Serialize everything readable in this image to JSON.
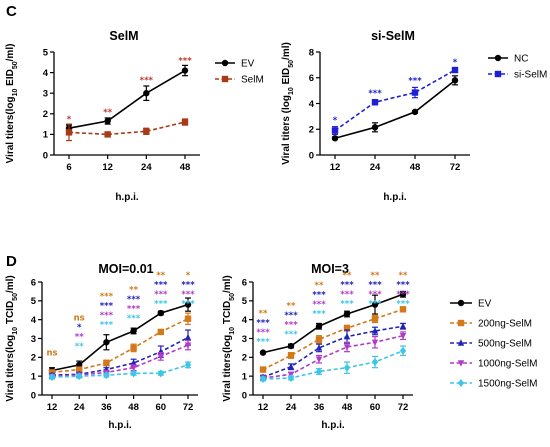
{
  "figure": {
    "panel_c_label": "C",
    "panel_d_label": "D"
  },
  "chart_data": [
    {
      "type": "line",
      "title": "SelM",
      "xlabel": "h.p.i.",
      "ylabel": "Viral titers(log10 EID50/ml)",
      "categories": [
        "6",
        "12",
        "24",
        "48"
      ],
      "ylim": [
        0,
        5
      ],
      "yticks": [
        "0",
        "1",
        "2",
        "3",
        "4",
        "5"
      ],
      "legend_position": "top-right",
      "series": [
        {
          "name": "EV",
          "color": "#000000",
          "dash": "solid",
          "marker": "circle",
          "values": [
            1.3,
            1.65,
            3.0,
            4.1
          ],
          "errors": [
            0.15,
            0.15,
            0.35,
            0.25
          ]
        },
        {
          "name": "SelM",
          "color": "#a83a16",
          "dash": "dashed",
          "marker": "square",
          "values": [
            1.1,
            1.0,
            1.15,
            1.6
          ],
          "errors": [
            0.4,
            0.05,
            0.15,
            0.15
          ]
        }
      ],
      "significance": [
        {
          "category": "6",
          "label": "*",
          "value": 1.6,
          "color": "#c0392b"
        },
        {
          "category": "12",
          "label": "**",
          "value": 1.95,
          "color": "#c0392b"
        },
        {
          "category": "24",
          "label": "***",
          "value": 3.5,
          "color": "#c0392b"
        },
        {
          "category": "48",
          "label": "***",
          "value": 4.45,
          "color": "#c0392b"
        }
      ]
    },
    {
      "type": "line",
      "title": "si-SelM",
      "xlabel": "h.p.i.",
      "ylabel": "Viral titers (log10 EID50/ml)",
      "categories": [
        "12",
        "24",
        "48",
        "72"
      ],
      "ylim": [
        0,
        8
      ],
      "yticks": [
        "0",
        "2",
        "4",
        "6",
        "8"
      ],
      "legend_position": "top-right",
      "series": [
        {
          "name": "NC",
          "color": "#000000",
          "dash": "solid",
          "marker": "circle",
          "values": [
            1.3,
            2.15,
            3.35,
            5.8
          ],
          "errors": [
            0.1,
            0.35,
            0.1,
            0.35
          ]
        },
        {
          "name": "si-SelM",
          "color": "#1f1fd6",
          "dash": "dashed",
          "marker": "square",
          "values": [
            1.9,
            4.1,
            4.85,
            6.6
          ],
          "errors": [
            0.3,
            0.2,
            0.4,
            0.1
          ]
        }
      ],
      "significance": [
        {
          "category": "12",
          "label": "*",
          "value": 2.5,
          "color": "#2020d0"
        },
        {
          "category": "24",
          "label": "***",
          "value": 4.6,
          "color": "#2020d0"
        },
        {
          "category": "48",
          "label": "***",
          "value": 5.55,
          "color": "#2020d0"
        },
        {
          "category": "72",
          "label": "*",
          "value": 7.0,
          "color": "#2020d0"
        }
      ]
    },
    {
      "type": "line",
      "title": "MOI=0.01",
      "xlabel": "h.p.i.",
      "ylabel": "Viral titers(log10 TCID50/ml)",
      "categories": [
        "12",
        "24",
        "36",
        "48",
        "60",
        "72"
      ],
      "ylim": [
        0,
        6
      ],
      "yticks": [
        "0",
        "1",
        "2",
        "3",
        "4",
        "5",
        "6"
      ],
      "series": [
        {
          "name": "EV",
          "color": "#000000",
          "marker": "circle",
          "values": [
            1.3,
            1.6,
            2.8,
            3.4,
            4.35,
            4.8
          ],
          "errors": [
            0.15,
            0.2,
            0.4,
            0.15,
            0.1,
            0.35
          ]
        },
        {
          "name": "200ng-SelM",
          "color": "#d4781a",
          "marker": "square",
          "values": [
            1.2,
            1.35,
            1.7,
            2.5,
            3.35,
            4.05
          ],
          "errors": [
            0.1,
            0.1,
            0.15,
            0.2,
            0.1,
            0.3
          ]
        },
        {
          "name": "500ng-SelM",
          "color": "#2323b8",
          "marker": "triangle",
          "values": [
            1.05,
            1.1,
            1.35,
            1.7,
            2.3,
            3.05
          ],
          "errors": [
            0.1,
            0.1,
            0.1,
            0.2,
            0.3,
            0.4
          ]
        },
        {
          "name": "1000ng-SelM",
          "color": "#b23ac8",
          "marker": "triangle-down",
          "values": [
            1.0,
            1.05,
            1.2,
            1.45,
            2.05,
            2.65
          ],
          "errors": [
            0.1,
            0.1,
            0.1,
            0.15,
            0.2,
            0.25
          ]
        },
        {
          "name": "1500ng-SelM",
          "color": "#3ec6e8",
          "marker": "diamond",
          "values": [
            0.95,
            1.0,
            1.05,
            1.15,
            1.15,
            1.6
          ],
          "errors": [
            0.1,
            0.1,
            0.1,
            0.1,
            0.1,
            0.15
          ]
        }
      ],
      "significance": [
        {
          "category": "12",
          "labels": [
            {
              "text": "ns",
              "color": "#d4781a",
              "big": true
            }
          ]
        },
        {
          "category": "24",
          "labels": [
            {
              "text": "ns",
              "color": "#d4781a",
              "big": true
            },
            {
              "text": "*",
              "color": "#2323b8"
            },
            {
              "text": "**",
              "color": "#b23ac8"
            },
            {
              "text": "**",
              "color": "#3ec6e8"
            }
          ]
        },
        {
          "category": "36",
          "labels": [
            {
              "text": "***",
              "color": "#d4781a"
            },
            {
              "text": "***",
              "color": "#2323b8"
            },
            {
              "text": "***",
              "color": "#b23ac8"
            },
            {
              "text": "***",
              "color": "#3ec6e8"
            }
          ]
        },
        {
          "category": "48",
          "labels": [
            {
              "text": "**",
              "color": "#d4781a"
            },
            {
              "text": "***",
              "color": "#2323b8"
            },
            {
              "text": "***",
              "color": "#b23ac8"
            },
            {
              "text": "***",
              "color": "#3ec6e8"
            }
          ]
        },
        {
          "category": "60",
          "labels": [
            {
              "text": "**",
              "color": "#d4781a"
            },
            {
              "text": "***",
              "color": "#2323b8"
            },
            {
              "text": "***",
              "color": "#b23ac8"
            },
            {
              "text": "***",
              "color": "#3ec6e8"
            }
          ]
        },
        {
          "category": "72",
          "labels": [
            {
              "text": "*",
              "color": "#d4781a"
            },
            {
              "text": "***",
              "color": "#2323b8"
            },
            {
              "text": "***",
              "color": "#b23ac8"
            },
            {
              "text": "***",
              "color": "#3ec6e8"
            }
          ]
        }
      ]
    },
    {
      "type": "line",
      "title": "MOI=3",
      "xlabel": "h.p.i.",
      "ylabel": "Viral titers(log10 TCID50/ml)",
      "categories": [
        "12",
        "24",
        "36",
        "48",
        "60",
        "72"
      ],
      "ylim": [
        0,
        6
      ],
      "yticks": [
        "0",
        "1",
        "2",
        "3",
        "4",
        "5",
        "6"
      ],
      "legend_position": "right",
      "series": [
        {
          "name": "EV",
          "color": "#000000",
          "marker": "circle",
          "values": [
            2.25,
            2.6,
            3.65,
            4.3,
            4.8,
            5.35
          ],
          "errors": [
            0.05,
            0.1,
            0.15,
            0.15,
            0.5,
            0.15
          ]
        },
        {
          "name": "200ng-SelM",
          "color": "#d4781a",
          "marker": "square",
          "values": [
            1.35,
            2.1,
            2.95,
            3.55,
            4.05,
            4.55
          ],
          "errors": [
            0.1,
            0.15,
            0.2,
            0.15,
            0.2,
            0.1
          ]
        },
        {
          "name": "500ng-SelM",
          "color": "#2323b8",
          "marker": "triangle",
          "values": [
            0.95,
            1.5,
            2.5,
            3.1,
            3.4,
            3.65
          ],
          "errors": [
            0.1,
            0.15,
            0.2,
            0.35,
            0.2,
            0.15
          ]
        },
        {
          "name": "1000ng-SelM",
          "color": "#b23ac8",
          "marker": "triangle-down",
          "values": [
            0.9,
            1.1,
            1.9,
            2.55,
            2.8,
            3.15
          ],
          "errors": [
            0.1,
            0.1,
            0.2,
            0.25,
            0.3,
            0.2
          ]
        },
        {
          "name": "1500ng-SelM",
          "color": "#3ec6e8",
          "marker": "diamond",
          "values": [
            0.85,
            0.9,
            1.25,
            1.45,
            1.75,
            2.35
          ],
          "errors": [
            0.1,
            0.1,
            0.15,
            0.3,
            0.3,
            0.25
          ]
        }
      ],
      "significance": [
        {
          "category": "12",
          "labels": [
            {
              "text": "**",
              "color": "#d4781a"
            },
            {
              "text": "***",
              "color": "#2323b8"
            },
            {
              "text": "***",
              "color": "#b23ac8"
            },
            {
              "text": "***",
              "color": "#3ec6e8"
            }
          ]
        },
        {
          "category": "24",
          "labels": [
            {
              "text": "**",
              "color": "#d4781a"
            },
            {
              "text": "***",
              "color": "#2323b8"
            },
            {
              "text": "***",
              "color": "#b23ac8"
            },
            {
              "text": "***",
              "color": "#3ec6e8"
            }
          ]
        },
        {
          "category": "36",
          "labels": [
            {
              "text": "**",
              "color": "#d4781a"
            },
            {
              "text": "***",
              "color": "#2323b8"
            },
            {
              "text": "***",
              "color": "#b23ac8"
            },
            {
              "text": "***",
              "color": "#3ec6e8"
            }
          ]
        },
        {
          "category": "48",
          "labels": [
            {
              "text": "**",
              "color": "#d4781a"
            },
            {
              "text": "***",
              "color": "#2323b8"
            },
            {
              "text": "***",
              "color": "#b23ac8"
            },
            {
              "text": "***",
              "color": "#3ec6e8"
            }
          ]
        },
        {
          "category": "60",
          "labels": [
            {
              "text": "**",
              "color": "#d4781a"
            },
            {
              "text": "***",
              "color": "#2323b8"
            },
            {
              "text": "***",
              "color": "#b23ac8"
            },
            {
              "text": "***",
              "color": "#3ec6e8"
            }
          ]
        },
        {
          "category": "72",
          "labels": [
            {
              "text": "**",
              "color": "#d4781a"
            },
            {
              "text": "***",
              "color": "#2323b8"
            },
            {
              "text": "***",
              "color": "#b23ac8"
            },
            {
              "text": "***",
              "color": "#3ec6e8"
            }
          ]
        }
      ]
    }
  ]
}
